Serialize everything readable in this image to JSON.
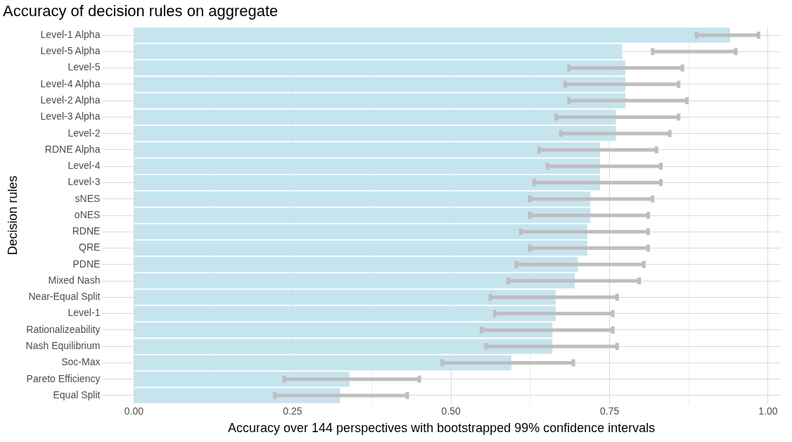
{
  "chart_data": {
    "type": "bar",
    "orientation": "horizontal",
    "title": "Accuracy of decision rules on aggregate",
    "xlabel": "Accuracy over 144 perspectives with bootstrapped 99% confidence intervals",
    "ylabel": "Decision rules",
    "categories": [
      "Level-1 Alpha",
      "Level-5 Alpha",
      "Level-5",
      "Level-4 Alpha",
      "Level-2 Alpha",
      "Level-3 Alpha",
      "Level-2",
      "RDNE Alpha",
      "Level-4",
      "Level-3",
      "sNES",
      "oNES",
      "RDNE",
      "QRE",
      "PDNE",
      "Mixed Nash",
      "Near-Equal Split",
      "Level-1",
      "Rationalizeability",
      "Nash Equilibrium",
      "Soc-Max",
      "Pareto Efficiency",
      "Equal Split"
    ],
    "series": [
      {
        "color": "#c5e4ee",
        "values": [
          0.94,
          0.77,
          0.775,
          0.775,
          0.775,
          0.76,
          0.76,
          0.735,
          0.735,
          0.735,
          0.72,
          0.72,
          0.715,
          0.715,
          0.7,
          0.695,
          0.665,
          0.665,
          0.66,
          0.66,
          0.595,
          0.34,
          0.325
        ],
        "errors": [
          [
            0.887,
            0.985
          ],
          [
            0.818,
            0.949
          ],
          [
            0.686,
            0.865
          ],
          [
            0.68,
            0.859
          ],
          [
            0.686,
            0.872
          ],
          [
            0.666,
            0.859
          ],
          [
            0.673,
            0.845
          ],
          [
            0.639,
            0.824
          ],
          [
            0.652,
            0.831
          ],
          [
            0.631,
            0.831
          ],
          [
            0.624,
            0.818
          ],
          [
            0.624,
            0.811
          ],
          [
            0.61,
            0.811
          ],
          [
            0.624,
            0.811
          ],
          [
            0.603,
            0.804
          ],
          [
            0.59,
            0.797
          ],
          [
            0.562,
            0.762
          ],
          [
            0.569,
            0.755
          ],
          [
            0.548,
            0.755
          ],
          [
            0.555,
            0.762
          ],
          [
            0.486,
            0.693
          ],
          [
            0.237,
            0.45
          ],
          [
            0.222,
            0.431
          ]
        ]
      }
    ],
    "xlim": [
      -0.05,
      1.02
    ],
    "xticks": [
      {
        "value": 0,
        "label": "0.00"
      },
      {
        "value": 0.125,
        "label": null
      },
      {
        "value": 0.25,
        "label": "0.25"
      },
      {
        "value": 0.375,
        "label": null
      },
      {
        "value": 0.5,
        "label": "0.50"
      },
      {
        "value": 0.625,
        "label": null
      },
      {
        "value": 0.75,
        "label": "0.75"
      },
      {
        "value": 0.875,
        "label": null
      },
      {
        "value": 1,
        "label": "1.00"
      }
    ],
    "grid": true,
    "legend": false
  }
}
